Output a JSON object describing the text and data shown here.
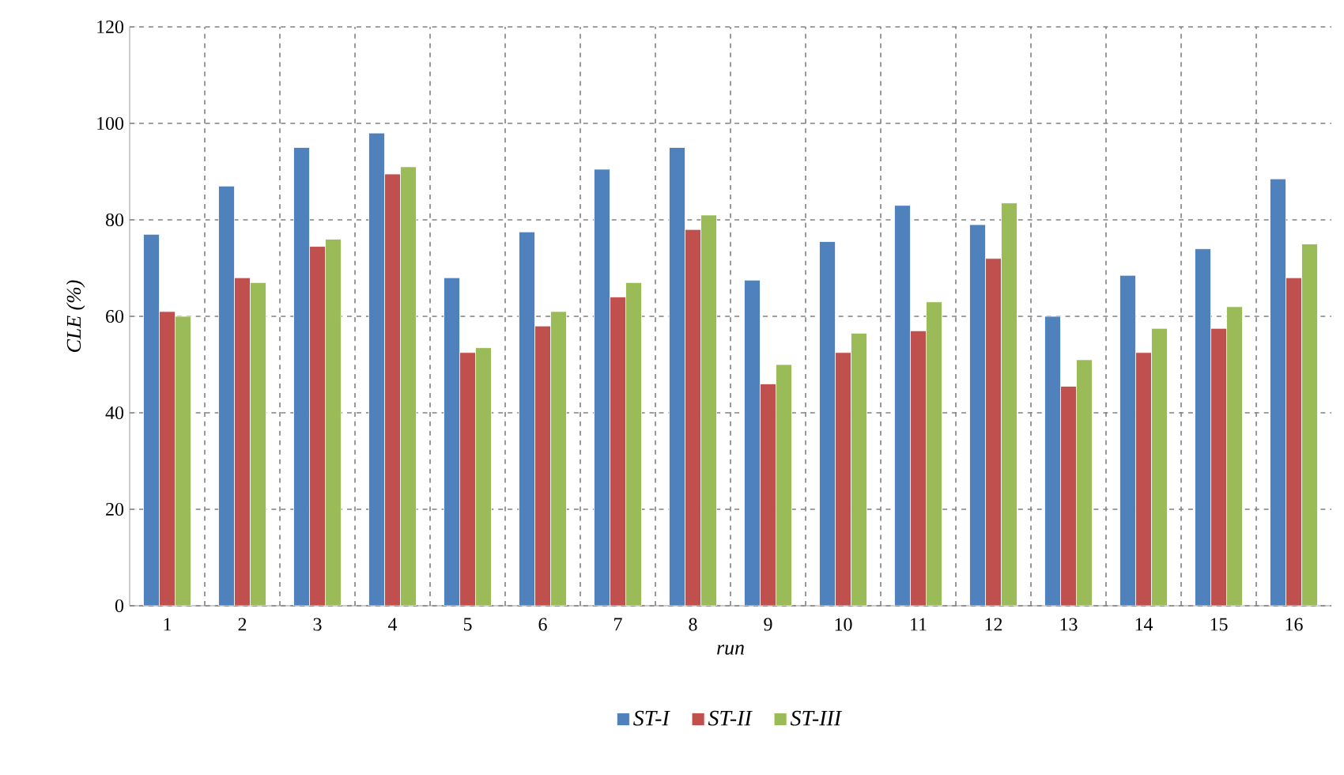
{
  "chart_data": {
    "type": "bar",
    "xlabel": "run",
    "ylabel": "CLE (%)",
    "categories": [
      "1",
      "2",
      "3",
      "4",
      "5",
      "6",
      "7",
      "8",
      "9",
      "10",
      "11",
      "12",
      "13",
      "14",
      "15",
      "16"
    ],
    "series": [
      {
        "name": "ST-I",
        "color": "#4f81bd",
        "values": [
          77,
          87,
          95,
          98,
          68,
          77.5,
          90.5,
          95,
          67.5,
          75.5,
          83,
          79,
          60,
          68.5,
          74,
          88.5
        ]
      },
      {
        "name": "ST-II",
        "color": "#c0504d",
        "values": [
          61,
          68,
          74.5,
          89.5,
          52.5,
          58,
          64,
          78,
          46,
          52.5,
          57,
          72,
          45.5,
          52.5,
          57.5,
          68
        ]
      },
      {
        "name": "ST-III",
        "color": "#9bbb59",
        "values": [
          60,
          67,
          76,
          91,
          53.5,
          61,
          67,
          81,
          50,
          56.5,
          63,
          83.5,
          51,
          57.5,
          62,
          75
        ]
      }
    ],
    "ylim": [
      0,
      120
    ],
    "yticks": [
      0,
      20,
      40,
      60,
      80,
      100,
      120
    ],
    "grid": true,
    "legend": "bottom"
  }
}
